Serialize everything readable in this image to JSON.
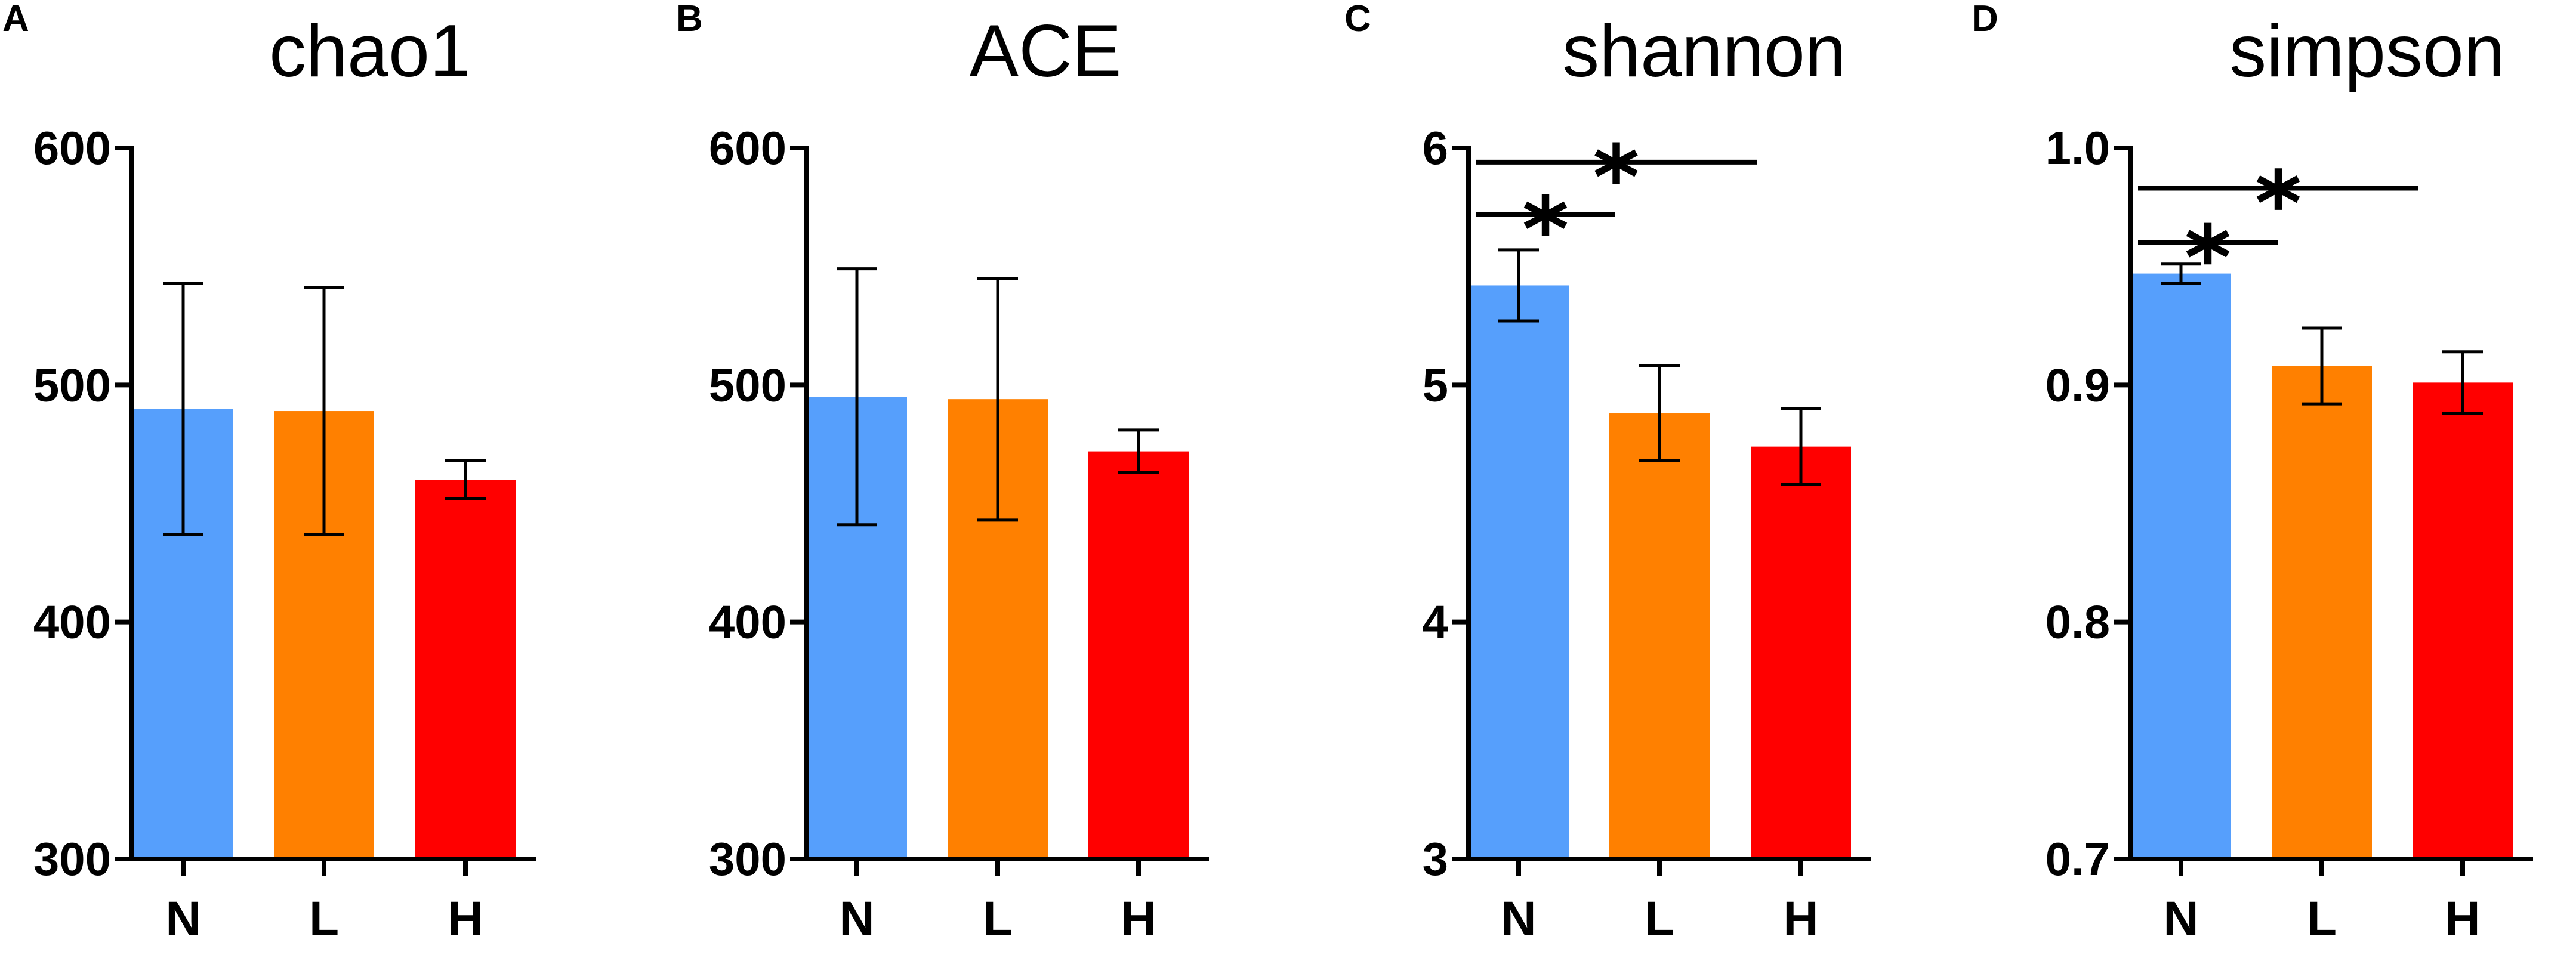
{
  "chart_data": [
    {
      "panel": "A",
      "type": "bar",
      "title": "chao1",
      "categories": [
        "N",
        "L",
        "H"
      ],
      "values": [
        490,
        489,
        460
      ],
      "errors": [
        53,
        52,
        8
      ],
      "colors": [
        "#569FFC",
        "#FF8000",
        "#FF0000"
      ],
      "ylim": [
        300,
        600
      ],
      "yticks": [
        300,
        400,
        500,
        600
      ],
      "ytick_labels": [
        "300",
        "400",
        "500",
        "600"
      ],
      "xlabel": "",
      "ylabel": "",
      "significance": []
    },
    {
      "panel": "B",
      "type": "bar",
      "title": "ACE",
      "categories": [
        "N",
        "L",
        "H"
      ],
      "values": [
        495,
        494,
        472
      ],
      "errors": [
        54,
        51,
        9
      ],
      "colors": [
        "#569FFC",
        "#FF8000",
        "#FF0000"
      ],
      "ylim": [
        300,
        600
      ],
      "yticks": [
        300,
        400,
        500,
        600
      ],
      "ytick_labels": [
        "300",
        "400",
        "500",
        "600"
      ],
      "xlabel": "",
      "ylabel": "",
      "significance": []
    },
    {
      "panel": "C",
      "type": "bar",
      "title": "shannon",
      "categories": [
        "N",
        "L",
        "H"
      ],
      "values": [
        5.42,
        4.88,
        4.74
      ],
      "errors": [
        0.15,
        0.2,
        0.16
      ],
      "colors": [
        "#569FFC",
        "#FF8000",
        "#FF0000"
      ],
      "ylim": [
        3,
        6
      ],
      "yticks": [
        3,
        4,
        5,
        6
      ],
      "ytick_labels": [
        "3",
        "4",
        "5",
        "6"
      ],
      "xlabel": "",
      "ylabel": "",
      "significance": [
        {
          "from": "N",
          "to": "L",
          "level": 5.72,
          "label": "*"
        },
        {
          "from": "N",
          "to": "H",
          "level": 5.94,
          "label": "*"
        }
      ]
    },
    {
      "panel": "D",
      "type": "bar",
      "title": "simpson",
      "categories": [
        "N",
        "L",
        "H"
      ],
      "values": [
        0.947,
        0.908,
        0.901
      ],
      "errors": [
        0.004,
        0.016,
        0.013
      ],
      "colors": [
        "#569FFC",
        "#FF8000",
        "#FF0000"
      ],
      "ylim": [
        0.7,
        1.0
      ],
      "yticks": [
        0.7,
        0.8,
        0.9,
        1.0
      ],
      "ytick_labels": [
        "0.7",
        "0.8",
        "0.9",
        "1.0"
      ],
      "xlabel": "",
      "ylabel": "",
      "significance": [
        {
          "from": "N",
          "to": "L",
          "level": 0.96,
          "label": "*"
        },
        {
          "from": "N",
          "to": "H",
          "level": 0.983,
          "label": "*"
        }
      ]
    }
  ]
}
